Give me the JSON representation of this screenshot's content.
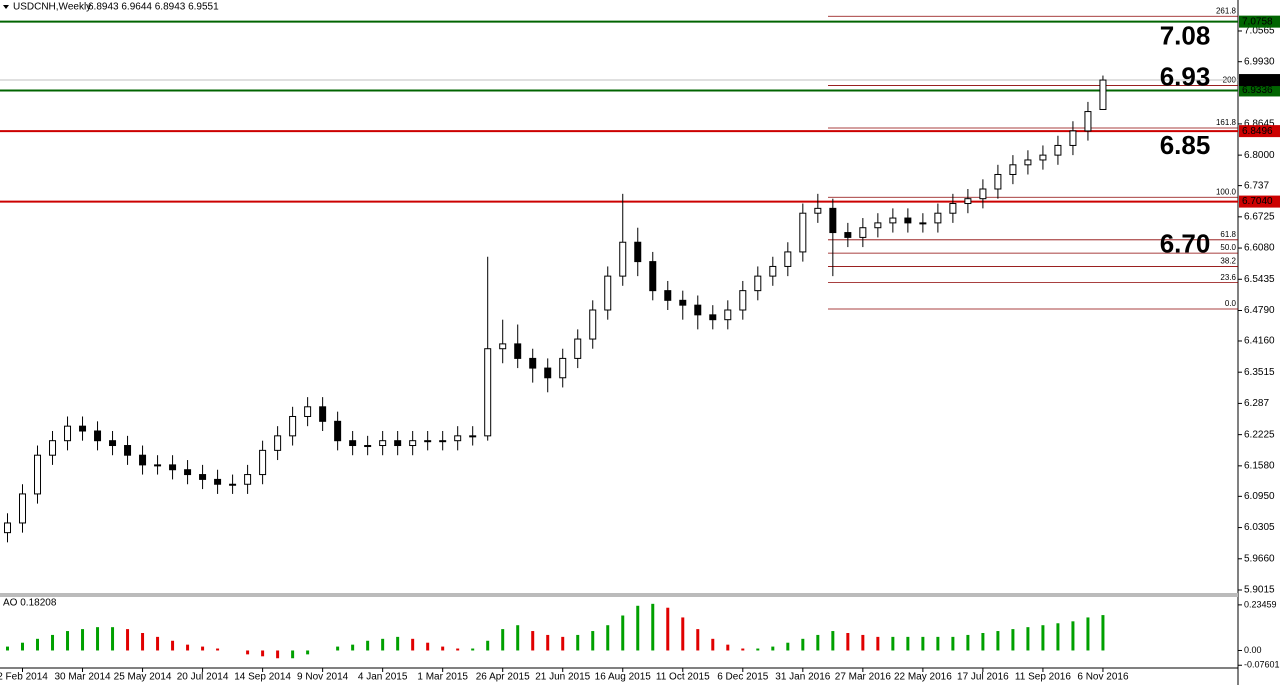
{
  "chart_data": {
    "type": "candlestick",
    "title": "USDCNH,Weekly",
    "header_ohlc": "6.8943 6.9644 6.8943 6.9551",
    "up_color": "#ffffff",
    "down_color": "#000000",
    "open": [
      6.02,
      6.04,
      6.1,
      6.18,
      6.21,
      6.24,
      6.23,
      6.21,
      6.2,
      6.18,
      6.16,
      6.16,
      6.15,
      6.14,
      6.13,
      6.12,
      6.12,
      6.14,
      6.19,
      6.22,
      6.26,
      6.28,
      6.25,
      6.21,
      6.2,
      6.2,
      6.21,
      6.2,
      6.21,
      6.21,
      6.21,
      6.22,
      6.22,
      6.4,
      6.41,
      6.38,
      6.36,
      6.34,
      6.38,
      6.42,
      6.48,
      6.55,
      6.62,
      6.58,
      6.52,
      6.5,
      6.49,
      6.47,
      6.46,
      6.48,
      6.52,
      6.55,
      6.57,
      6.6,
      6.68,
      6.69,
      6.64,
      6.63,
      6.65,
      6.66,
      6.67,
      6.66,
      6.66,
      6.68,
      6.7,
      6.71,
      6.73,
      6.76,
      6.78,
      6.79,
      6.8,
      6.82,
      6.85,
      6.8943
    ],
    "high": [
      6.06,
      6.12,
      6.2,
      6.23,
      6.26,
      6.26,
      6.25,
      6.23,
      6.22,
      6.2,
      6.18,
      6.18,
      6.17,
      6.16,
      6.15,
      6.14,
      6.16,
      6.21,
      6.24,
      6.28,
      6.3,
      6.3,
      6.27,
      6.23,
      6.22,
      6.23,
      6.23,
      6.23,
      6.23,
      6.23,
      6.24,
      6.24,
      6.59,
      6.46,
      6.45,
      6.4,
      6.38,
      6.4,
      6.44,
      6.5,
      6.57,
      6.72,
      6.65,
      6.6,
      6.54,
      6.52,
      6.51,
      6.49,
      6.5,
      6.54,
      6.57,
      6.59,
      6.62,
      6.7,
      6.72,
      6.71,
      6.66,
      6.67,
      6.68,
      6.69,
      6.69,
      6.68,
      6.7,
      6.72,
      6.73,
      6.75,
      6.78,
      6.8,
      6.81,
      6.82,
      6.84,
      6.87,
      6.91,
      6.9644
    ],
    "low": [
      6.0,
      6.02,
      6.08,
      6.16,
      6.19,
      6.21,
      6.19,
      6.18,
      6.16,
      6.14,
      6.14,
      6.13,
      6.12,
      6.11,
      6.1,
      6.1,
      6.1,
      6.12,
      6.17,
      6.2,
      6.24,
      6.23,
      6.19,
      6.18,
      6.18,
      6.18,
      6.18,
      6.18,
      6.19,
      6.19,
      6.19,
      6.2,
      6.21,
      6.37,
      6.36,
      6.33,
      6.31,
      6.32,
      6.36,
      6.4,
      6.46,
      6.53,
      6.55,
      6.5,
      6.48,
      6.46,
      6.44,
      6.44,
      6.44,
      6.46,
      6.5,
      6.53,
      6.55,
      6.58,
      6.66,
      6.55,
      6.61,
      6.61,
      6.63,
      6.64,
      6.64,
      6.64,
      6.64,
      6.66,
      6.68,
      6.69,
      6.71,
      6.74,
      6.76,
      6.77,
      6.78,
      6.8,
      6.83,
      6.8943
    ],
    "close": [
      6.04,
      6.1,
      6.18,
      6.21,
      6.24,
      6.23,
      6.21,
      6.2,
      6.18,
      6.16,
      6.16,
      6.15,
      6.14,
      6.13,
      6.12,
      6.12,
      6.14,
      6.19,
      6.22,
      6.26,
      6.28,
      6.25,
      6.21,
      6.2,
      6.2,
      6.21,
      6.2,
      6.21,
      6.21,
      6.21,
      6.22,
      6.22,
      6.4,
      6.41,
      6.38,
      6.36,
      6.34,
      6.38,
      6.42,
      6.48,
      6.55,
      6.62,
      6.58,
      6.52,
      6.5,
      6.49,
      6.47,
      6.46,
      6.48,
      6.52,
      6.55,
      6.57,
      6.6,
      6.68,
      6.69,
      6.64,
      6.63,
      6.65,
      6.66,
      6.67,
      6.66,
      6.66,
      6.68,
      6.7,
      6.71,
      6.73,
      6.76,
      6.78,
      6.79,
      6.8,
      6.82,
      6.85,
      6.89,
      6.9551
    ],
    "xlim": [
      -0.5,
      82
    ],
    "xticks": [
      {
        "value": 1,
        "label": "2 Feb 2014"
      },
      {
        "value": 5,
        "label": "30 Mar 2014"
      },
      {
        "value": 9,
        "label": "25 May 2014"
      },
      {
        "value": 13,
        "label": "20 Jul 2014"
      },
      {
        "value": 17,
        "label": "14 Sep 2014"
      },
      {
        "value": 21,
        "label": "9 Nov 2014"
      },
      {
        "value": 25,
        "label": "4 Jan 2015"
      },
      {
        "value": 29,
        "label": "1 Mar 2015"
      },
      {
        "value": 33,
        "label": "26 Apr 2015"
      },
      {
        "value": 37,
        "label": "21 Jun 2015"
      },
      {
        "value": 41,
        "label": "16 Aug 2015"
      },
      {
        "value": 45,
        "label": "11 Oct 2015"
      },
      {
        "value": 49,
        "label": "6 Dec 2015"
      },
      {
        "value": 53,
        "label": "31 Jan 2016"
      },
      {
        "value": 57,
        "label": "27 Mar 2016"
      },
      {
        "value": 61,
        "label": "22 May 2016"
      },
      {
        "value": 65,
        "label": "17 Jul 2016"
      },
      {
        "value": 69,
        "label": "11 Sep 2016"
      },
      {
        "value": 73,
        "label": "6 Nov 2016"
      }
    ],
    "ylim": [
      5.8953,
      7.1205
    ],
    "yticks": [
      7.0565,
      {
        "value": 6.993,
        "label": "6.9930"
      },
      6.8645,
      {
        "value": 6.8,
        "label": "6.8000"
      },
      6.737,
      6.6725,
      {
        "value": 6.608,
        "label": "6.6080"
      },
      6.5435,
      {
        "value": 6.479,
        "label": "6.4790"
      },
      {
        "value": 6.416,
        "label": "6.4160"
      },
      6.3515,
      6.287,
      6.2225,
      {
        "value": 6.158,
        "label": "6.1580"
      },
      {
        "value": 6.095,
        "label": "6.0950"
      },
      6.0305,
      {
        "value": 5.966,
        "label": "5.9660"
      },
      5.9015
    ],
    "current": {
      "value": 6.9551,
      "color": "#c0c0c0"
    },
    "levels": {
      "values": [
        7.0758,
        6.9336,
        6.8496,
        6.704
      ],
      "value_labels": [
        "7.0758",
        "6.9336",
        "6.8496",
        "6.7040"
      ],
      "colors": [
        "#006400",
        "#006400",
        "#cc0000",
        "#cc0000"
      ],
      "annotations": [
        "7.08",
        "6.93",
        "6.85",
        "6.70"
      ],
      "annotation_colors": [
        "#2eb14b",
        "#d62a2a",
        "#d62a2a",
        "#d62a2a"
      ]
    },
    "fib": {
      "labels": [
        "261.8",
        "200",
        "161.8",
        "100.0",
        "61.8",
        "50.0",
        "38.2",
        "23.6",
        "0.0"
      ],
      "prices": [
        7.087,
        6.944,
        6.856,
        6.713,
        6.625,
        6.5975,
        6.57,
        6.5365,
        6.482
      ],
      "color": "#8b0000"
    },
    "ao": {
      "title": "AO 0.18208",
      "values": [
        0.02,
        0.04,
        0.06,
        0.08,
        0.1,
        0.11,
        0.12,
        0.12,
        0.11,
        0.09,
        0.07,
        0.05,
        0.03,
        0.02,
        0.01,
        0.0,
        -0.02,
        -0.03,
        -0.04,
        -0.04,
        -0.02,
        0.0,
        0.02,
        0.03,
        0.05,
        0.06,
        0.07,
        0.06,
        0.04,
        0.02,
        0.01,
        0.01,
        0.05,
        0.11,
        0.13,
        0.1,
        0.08,
        0.07,
        0.08,
        0.1,
        0.13,
        0.18,
        0.23,
        0.24,
        0.22,
        0.17,
        0.11,
        0.06,
        0.03,
        0.01,
        0.01,
        0.02,
        0.04,
        0.06,
        0.08,
        0.1,
        0.09,
        0.08,
        0.07,
        0.07,
        0.07,
        0.07,
        0.07,
        0.07,
        0.08,
        0.09,
        0.1,
        0.11,
        0.12,
        0.13,
        0.14,
        0.15,
        0.17,
        0.18208
      ],
      "ylim": [
        -0.085,
        0.27
      ],
      "yticks": [
        0.23459,
        {
          "value": 0,
          "label": "0.00"
        },
        -0.07601
      ],
      "up_color": "#00a000",
      "down_color": "#e00000"
    }
  }
}
